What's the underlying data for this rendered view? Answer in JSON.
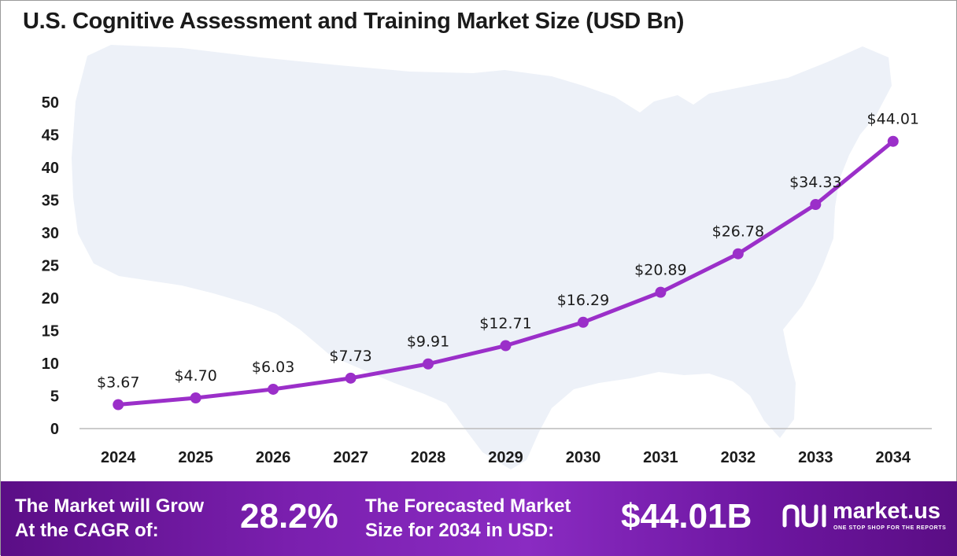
{
  "title": "U.S. Cognitive Assessment and Training Market Size (USD Bn)",
  "colors": {
    "line": "#9b2fc9",
    "point": "#9b2fc9",
    "map_fill": "#edf1f8",
    "axis": "#bcbcbc",
    "footer_start": "#5b0e86",
    "footer_end": "#8a2bc2"
  },
  "chart_data": {
    "type": "line",
    "title": "U.S. Cognitive Assessment and Training Market Size (USD Bn)",
    "x": [
      "2024",
      "2025",
      "2026",
      "2027",
      "2028",
      "2029",
      "2030",
      "2031",
      "2032",
      "2033",
      "2034"
    ],
    "series": [
      {
        "values": [
          3.67,
          4.7,
          6.03,
          7.73,
          9.91,
          12.71,
          16.29,
          20.89,
          26.78,
          34.33,
          44.01
        ],
        "labels": [
          "$3.67",
          "$4.70",
          "$6.03",
          "$7.73",
          "$9.91",
          "$12.71",
          "$16.29",
          "$20.89",
          "$26.78",
          "$34.33",
          "$44.01"
        ]
      }
    ],
    "yticks": [
      "0",
      "5",
      "10",
      "15",
      "20",
      "25",
      "30",
      "35",
      "40",
      "45",
      "50"
    ],
    "ylim": [
      0,
      50
    ],
    "xlabel": "",
    "ylabel": "",
    "grid": false,
    "legend": "none",
    "background": "us-map-silhouette"
  },
  "footer": {
    "cagr_label_line1": "The Market will Grow",
    "cagr_label_line2": "At the CAGR of:",
    "cagr_value": "28.2%",
    "forecast_label_line1": "The Forecasted Market",
    "forecast_label_line2": "Size for 2034 in USD:",
    "forecast_value": "$44.01B",
    "logo_icon": "market-us-logo-icon",
    "logo_name": "market.us",
    "logo_tagline": "ONE STOP SHOP FOR THE REPORTS"
  }
}
